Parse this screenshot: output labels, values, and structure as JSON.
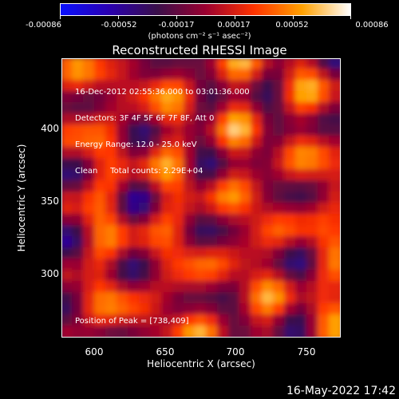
{
  "colorbar": {
    "tick_labels": [
      "-0.00086",
      "-0.00052",
      "-0.00017",
      "0.00017",
      "0.00052",
      "0.00086"
    ],
    "unit_label": "(photons cm⁻² s⁻¹ asec⁻²)"
  },
  "image": {
    "title": "Reconstructed RHESSI Image",
    "info_line1": "16-Dec-2012 02:55:36.000 to 03:01:36.000",
    "info_line2": "Detectors: 3F 4F 5F 6F 7F 8F, Att 0",
    "info_line3": "Energy Range: 12.0 - 25.0 keV",
    "info_line4": "Clean     Total counts: 2.29E+04",
    "peak_label": "Position of Peak = [738,409]",
    "x_ticks": [
      "600",
      "650",
      "700",
      "750"
    ],
    "y_ticks": [
      "400",
      "350",
      "300"
    ],
    "xlabel": "Heliocentric X (arcsec)",
    "ylabel": "Heliocentric Y (arcsec)"
  },
  "footer": {
    "timestamp": "16-May-2022 17:42"
  },
  "colors": {
    "colormap": [
      "#0a10ff",
      "#2a00b0",
      "#3a0f4a",
      "#9a0030",
      "#ff3300",
      "#ffa000",
      "#ffffff"
    ]
  }
}
